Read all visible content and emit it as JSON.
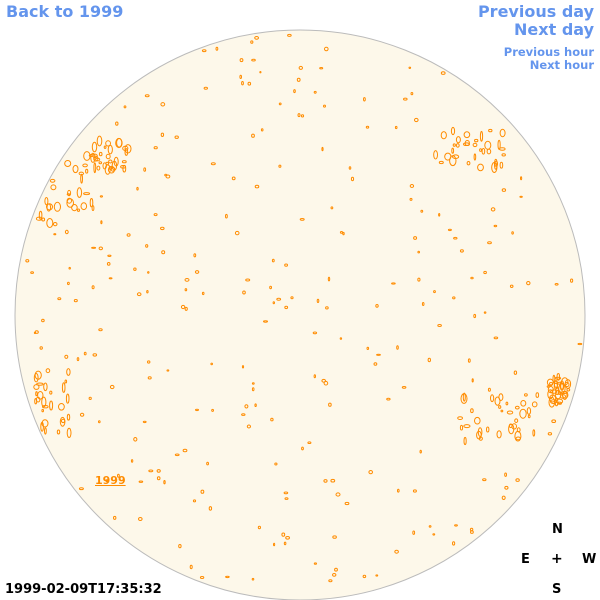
{
  "nav": {
    "back_label": "Back to 1999",
    "previous_day_label": "Previous day",
    "next_day_label": "Next day",
    "previous_hour_label": "Previous hour",
    "next_hour_label": "Next hour"
  },
  "disk": {
    "fill_color": "#fdf8ea",
    "contour_color": "#ff8c00"
  },
  "region": {
    "label": "1999"
  },
  "compass": {
    "north": "N",
    "east": "E",
    "center": "+",
    "west": "W",
    "south": "S"
  },
  "timestamp": "1999-02-09T17:35:32"
}
